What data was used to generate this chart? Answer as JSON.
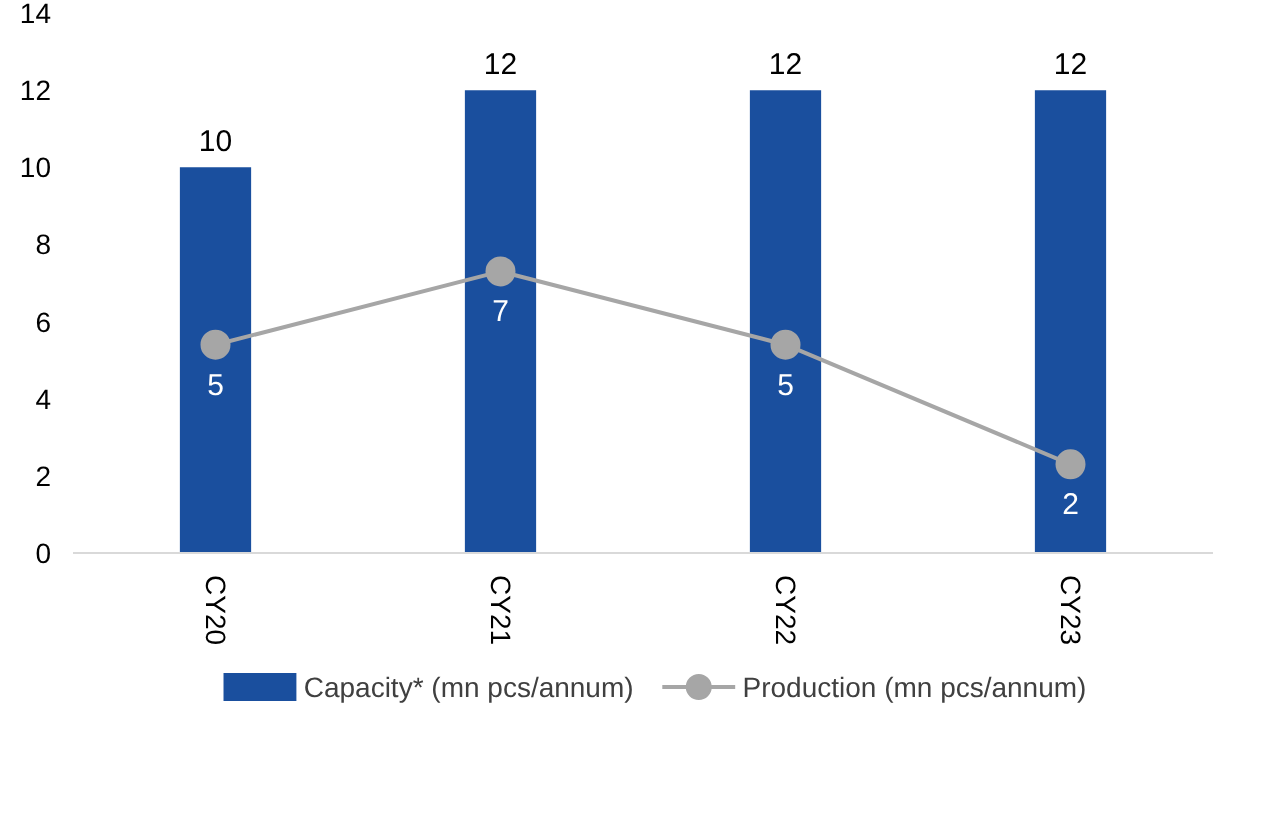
{
  "chart_data": {
    "type": "bar",
    "categories": [
      "CY20",
      "CY21",
      "CY22",
      "CY23"
    ],
    "series": [
      {
        "name": "Capacity* (mn pcs/annum)",
        "type": "bar",
        "color": "#1a4f9e",
        "values": [
          10,
          12,
          12,
          12
        ],
        "value_labels": [
          "10",
          "12",
          "12",
          "12"
        ]
      },
      {
        "name": "Production (mn pcs/annum)",
        "type": "line",
        "color": "#a6a6a6",
        "marker": "circle",
        "values": [
          5.4,
          7.3,
          5.4,
          2.3
        ],
        "value_labels": [
          "5",
          "7",
          "5",
          "2"
        ]
      }
    ],
    "ylim": [
      0,
      14
    ],
    "yticks": [
      0,
      2,
      4,
      6,
      8,
      10,
      12,
      14
    ],
    "grid": false,
    "legend": "bottom"
  }
}
